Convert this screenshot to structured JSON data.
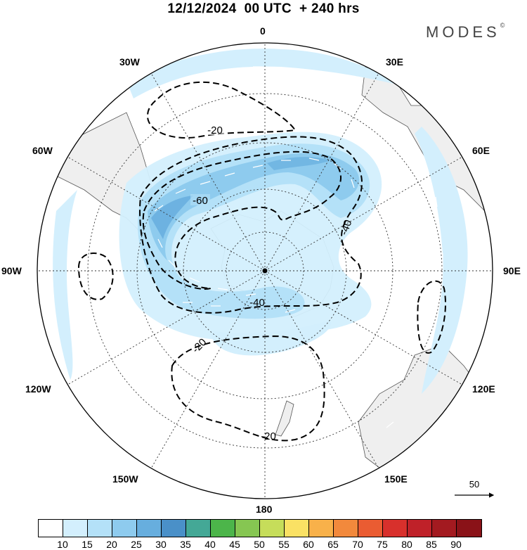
{
  "title": "12/12/2024  00 UTC  + 240 hrs",
  "brand": "MODES",
  "brand_mark": "©",
  "longitude_labels": {
    "top": "0",
    "e30": "30E",
    "e60": "60E",
    "e90": "90E",
    "e120": "120E",
    "e150": "150E",
    "bottom": "180",
    "w150": "150W",
    "w120": "120W",
    "w90": "90W",
    "w60": "60W",
    "w30": "30W"
  },
  "contour_labels": [
    "-20",
    "-60",
    "-40",
    "-40",
    "-20",
    "-20"
  ],
  "vector_reference": {
    "value": "50"
  },
  "colorbar": {
    "colors": [
      "#ffffff",
      "#d3effd",
      "#b4e1f8",
      "#8ecbee",
      "#67aede",
      "#4a90c8",
      "#44a896",
      "#4cb54a",
      "#86c652",
      "#c6dd5a",
      "#fae164",
      "#f8b14a",
      "#f2893c",
      "#ea5c32",
      "#d8302c",
      "#bf2129",
      "#a31a20",
      "#8a1218"
    ],
    "ticks": [
      "10",
      "15",
      "20",
      "25",
      "30",
      "35",
      "40",
      "45",
      "50",
      "55",
      "60",
      "65",
      "70",
      "75",
      "80",
      "85",
      "90"
    ]
  },
  "colors": {
    "land": "#efefef",
    "shade_light": "#d3effd",
    "shade_mid": "#b4e1f8",
    "shade_strong": "#8ecbee",
    "shade_core": "#67aede"
  }
}
